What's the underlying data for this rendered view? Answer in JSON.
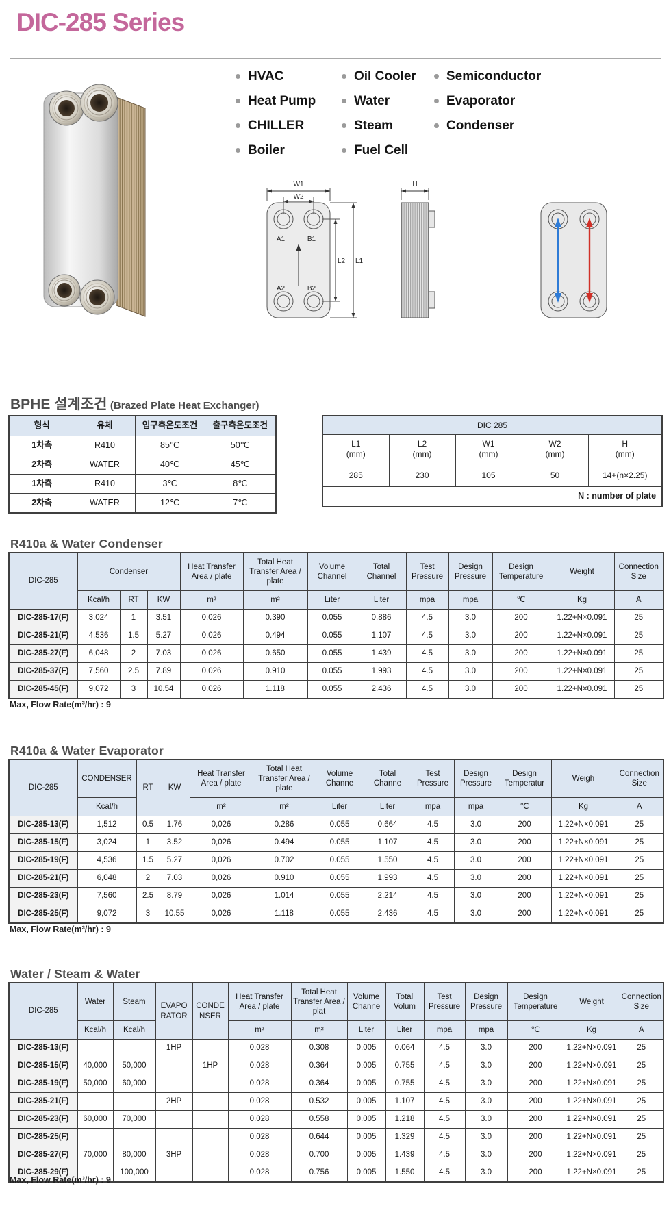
{
  "header": {
    "title": "DIC-285 Series"
  },
  "applications": {
    "columns": [
      {
        "items": [
          "HVAC",
          "Heat Pump",
          "CHILLER",
          "Boiler"
        ]
      },
      {
        "items": [
          "Oil Cooler",
          "Water",
          "Steam",
          "Fuel Cell"
        ]
      },
      {
        "items": [
          "Semiconductor",
          "Evaporator",
          "Condenser"
        ]
      }
    ]
  },
  "diagram": {
    "labels": {
      "w1": "W1",
      "w2": "W2",
      "a1": "A1",
      "b1": "B1",
      "a2": "A2",
      "b2": "B2",
      "l1": "L1",
      "l2": "L2",
      "h": "H"
    },
    "flow_colors": {
      "cold": "#2e7bd6",
      "hot": "#d03028"
    }
  },
  "design_section": {
    "title_ko": "BPHE 설계조건",
    "title_en": "(Brazed Plate Heat Exchanger)",
    "conditions_table": {
      "widths": [
        96,
        88,
        102,
        104
      ],
      "header": [
        [
          {
            "t": "형식"
          },
          {
            "t": "유체"
          },
          {
            "t": "입구측온도조건"
          },
          {
            "t": "출구측온도조건"
          }
        ]
      ],
      "rows": [
        [
          "1차측",
          "R410",
          "85℃",
          "50℃"
        ],
        [
          "2차측",
          "WATER",
          "40℃",
          "45℃"
        ],
        [
          "1차측",
          "R410",
          "3℃",
          "8℃"
        ],
        [
          "2차측",
          "WATER",
          "12℃",
          "7℃"
        ]
      ]
    },
    "dimensions_table": {
      "widths": [
        97,
        97,
        97,
        97,
        108
      ],
      "header": [
        [
          {
            "t": "DIC 285",
            "cs": 5
          }
        ],
        [
          {
            "t": "L1",
            "u": "(mm)"
          },
          {
            "t": "L2",
            "u": "(mm)"
          },
          {
            "t": "W1",
            "u": "(mm)"
          },
          {
            "t": "W2",
            "u": "(mm)"
          },
          {
            "t": "H",
            "u": "(mm)"
          }
        ]
      ],
      "rows": [
        [
          "285",
          "230",
          "105",
          "50",
          "14+(n×2.25)"
        ]
      ],
      "note": "N : number of plate"
    }
  },
  "condenser_section": {
    "title": "R410a & Water Condenser",
    "max_flow": "Max, Flow Rate(m³/hr) : 9",
    "table": {
      "widths": [
        100,
        62,
        40,
        48,
        92,
        94,
        72,
        72,
        62,
        64,
        84,
        94,
        72
      ],
      "header": [
        [
          {
            "t": "DIC-285",
            "rs": 2
          },
          {
            "t": "Condenser",
            "cs": 3
          },
          {
            "t": "Heat Transfer Area / plate"
          },
          {
            "t": "Total Heat Transfer Area / plate"
          },
          {
            "t": "Volume Channel"
          },
          {
            "t": "Total Channel"
          },
          {
            "t": "Test Pressure"
          },
          {
            "t": "Design Pressure"
          },
          {
            "t": "Design Temperature"
          },
          {
            "t": "Weight"
          },
          {
            "t": "Connection Size"
          }
        ],
        [
          {
            "t": "Kcal/h"
          },
          {
            "t": "RT"
          },
          {
            "t": "KW"
          },
          {
            "t": "m²"
          },
          {
            "t": "m²"
          },
          {
            "t": "Liter"
          },
          {
            "t": "Liter"
          },
          {
            "t": "mpa"
          },
          {
            "t": "mpa"
          },
          {
            "t": "℃"
          },
          {
            "t": "Kg"
          },
          {
            "t": "A"
          }
        ]
      ],
      "rows": [
        [
          "DIC-285-17(F)",
          "3,024",
          "1",
          "3.51",
          "0.026",
          "0.390",
          "0.055",
          "0.886",
          "4.5",
          "3.0",
          "200",
          "1.22+N×0.091",
          "25"
        ],
        [
          "DIC-285-21(F)",
          "4,536",
          "1.5",
          "5.27",
          "0.026",
          "0.494",
          "0.055",
          "1.107",
          "4.5",
          "3.0",
          "200",
          "1.22+N×0.091",
          "25"
        ],
        [
          "DIC-285-27(F)",
          "6,048",
          "2",
          "7.03",
          "0.026",
          "0.650",
          "0.055",
          "1.439",
          "4.5",
          "3.0",
          "200",
          "1.22+N×0.091",
          "25"
        ],
        [
          "DIC-285-37(F)",
          "7,560",
          "2.5",
          "7.89",
          "0.026",
          "0.910",
          "0.055",
          "1.993",
          "4.5",
          "3.0",
          "200",
          "1.22+N×0.091",
          "25"
        ],
        [
          "DIC-285-45(F)",
          "9,072",
          "3",
          "10.54",
          "0.026",
          "1.118",
          "0.055",
          "2.436",
          "4.5",
          "3.0",
          "200",
          "1.22+N×0.091",
          "25"
        ]
      ]
    }
  },
  "evaporator_section": {
    "title": "R410a & Water Evaporator",
    "max_flow": "Max, Flow Rate(m³/hr) : 9",
    "table": {
      "widths": [
        100,
        86,
        34,
        44,
        92,
        92,
        70,
        70,
        62,
        64,
        78,
        94,
        70
      ],
      "header": [
        [
          {
            "t": "DIC-285",
            "rs": 2
          },
          {
            "t": "CONDENSER"
          },
          {
            "t": "RT",
            "rs": 2
          },
          {
            "t": "KW",
            "rs": 2
          },
          {
            "t": "Heat Transfer Area / plate"
          },
          {
            "t": "Total Heat Transfer Area / plate"
          },
          {
            "t": "Volume Channe"
          },
          {
            "t": "Total Channe"
          },
          {
            "t": "Test Pressure"
          },
          {
            "t": "Design Pressure"
          },
          {
            "t": "Design Temperatur"
          },
          {
            "t": "Weigh"
          },
          {
            "t": "Connection Size"
          }
        ],
        [
          {
            "t": "Kcal/h"
          },
          {
            "t": "m²"
          },
          {
            "t": "m²"
          },
          {
            "t": "Liter"
          },
          {
            "t": "Liter"
          },
          {
            "t": "mpa"
          },
          {
            "t": "mpa"
          },
          {
            "t": "℃"
          },
          {
            "t": "Kg"
          },
          {
            "t": "A"
          }
        ]
      ],
      "rows": [
        [
          "DIC-285-13(F)",
          "1,512",
          "0.5",
          "1.76",
          "0,026",
          "0.286",
          "0.055",
          "0.664",
          "4.5",
          "3.0",
          "200",
          "1.22+N×0.091",
          "25"
        ],
        [
          "DIC-285-15(F)",
          "3,024",
          "1",
          "3.52",
          "0,026",
          "0.494",
          "0.055",
          "1.107",
          "4.5",
          "3.0",
          "200",
          "1.22+N×0.091",
          "25"
        ],
        [
          "DIC-285-19(F)",
          "4,536",
          "1.5",
          "5.27",
          "0,026",
          "0.702",
          "0.055",
          "1.550",
          "4.5",
          "3.0",
          "200",
          "1.22+N×0.091",
          "25"
        ],
        [
          "DIC-285-21(F)",
          "6,048",
          "2",
          "7.03",
          "0,026",
          "0.910",
          "0.055",
          "1.993",
          "4.5",
          "3.0",
          "200",
          "1.22+N×0.091",
          "25"
        ],
        [
          "DIC-285-23(F)",
          "7,560",
          "2.5",
          "8.79",
          "0,026",
          "1.014",
          "0.055",
          "2.214",
          "4.5",
          "3.0",
          "200",
          "1.22+N×0.091",
          "25"
        ],
        [
          "DIC-285-25(F)",
          "9,072",
          "3",
          "10.55",
          "0,026",
          "1.118",
          "0.055",
          "2.436",
          "4.5",
          "3.0",
          "200",
          "1.22+N×0.091",
          "25"
        ]
      ]
    }
  },
  "water_steam_section": {
    "title": "Water / Steam & Water",
    "max_flow": "Max, Flow Rate(m³/hr) : 9",
    "table": {
      "widths": [
        100,
        52,
        62,
        54,
        52,
        92,
        82,
        56,
        56,
        60,
        62,
        82,
        82,
        64
      ],
      "header": [
        [
          {
            "t": "DIC-285",
            "rs": 2
          },
          {
            "t": "Water"
          },
          {
            "t": "Steam"
          },
          {
            "t": "EVAPO RATOR",
            "rs": 2
          },
          {
            "t": "CONDE NSER",
            "rs": 2
          },
          {
            "t": "Heat Transfer Area / plate"
          },
          {
            "t": "Total Heat Transfer Area / plat"
          },
          {
            "t": "Volume Channe"
          },
          {
            "t": "Total Volum"
          },
          {
            "t": "Test Pressure"
          },
          {
            "t": "Design Pressure"
          },
          {
            "t": "Design Temperature"
          },
          {
            "t": "Weight"
          },
          {
            "t": "Connection Size"
          }
        ],
        [
          {
            "t": "Kcal/h"
          },
          {
            "t": "Kcal/h"
          },
          {
            "t": "m²"
          },
          {
            "t": "m²"
          },
          {
            "t": "Liter"
          },
          {
            "t": "Liter"
          },
          {
            "t": "mpa"
          },
          {
            "t": "mpa"
          },
          {
            "t": "℃"
          },
          {
            "t": "Kg"
          },
          {
            "t": "A"
          }
        ]
      ],
      "rows": [
        [
          "DIC-285-13(F)",
          "",
          "",
          "1HP",
          "",
          "0.028",
          "0.308",
          "0.005",
          "0.064",
          "4.5",
          "3.0",
          "200",
          "1.22+N×0.091",
          "25"
        ],
        [
          "DIC-285-15(F)",
          "40,000",
          "50,000",
          "",
          "1HP",
          "0.028",
          "0.364",
          "0.005",
          "0.755",
          "4.5",
          "3.0",
          "200",
          "1.22+N×0.091",
          "25"
        ],
        [
          "DIC-285-19(F)",
          "50,000",
          "60,000",
          "",
          "",
          "0.028",
          "0.364",
          "0.005",
          "0.755",
          "4.5",
          "3.0",
          "200",
          "1.22+N×0.091",
          "25"
        ],
        [
          "DIC-285-21(F)",
          "",
          "",
          "2HP",
          "",
          "0.028",
          "0.532",
          "0.005",
          "1.107",
          "4.5",
          "3.0",
          "200",
          "1.22+N×0.091",
          "25"
        ],
        [
          "DIC-285-23(F)",
          "60,000",
          "70,000",
          "",
          "",
          "0.028",
          "0.558",
          "0.005",
          "1.218",
          "4.5",
          "3.0",
          "200",
          "1.22+N×0.091",
          "25"
        ],
        [
          "DIC-285-25(F)",
          "",
          "",
          "",
          "",
          "0.028",
          "0.644",
          "0.005",
          "1.329",
          "4.5",
          "3.0",
          "200",
          "1.22+N×0.091",
          "25"
        ],
        [
          "DIC-285-27(F)",
          "70,000",
          "80,000",
          "3HP",
          "",
          "0.028",
          "0.700",
          "0.005",
          "1.439",
          "4.5",
          "3.0",
          "200",
          "1.22+N×0.091",
          "25"
        ],
        [
          "DIC-285-29(F)",
          "",
          "100,000",
          "",
          "",
          "0.028",
          "0.756",
          "0.005",
          "1.550",
          "4.5",
          "3.0",
          "200",
          "1.22+N×0.091",
          "25"
        ]
      ]
    }
  }
}
